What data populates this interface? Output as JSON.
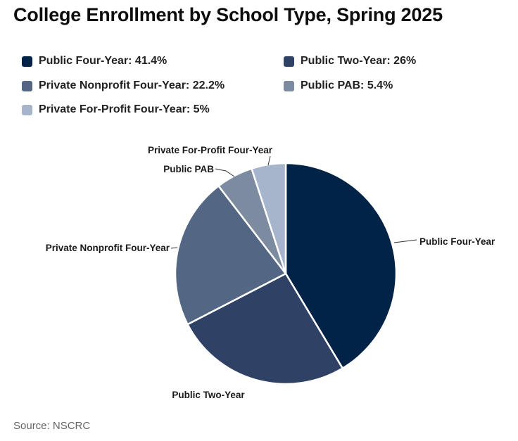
{
  "chart_data": {
    "type": "pie",
    "title": "College Enrollment by School Type, Spring 2025",
    "source": "Source: NSCRC",
    "slices": [
      {
        "label": "Public Four-Year",
        "value": 41.4,
        "legend": "Public Four-Year: 41.4%",
        "color": "#012348"
      },
      {
        "label": "Public Two-Year",
        "value": 26,
        "legend": "Public Two-Year: 26%",
        "color": "#2f4266"
      },
      {
        "label": "Private Nonprofit Four-Year",
        "value": 22.2,
        "legend": "Private Nonprofit Four-Year: 22.2%",
        "color": "#536784"
      },
      {
        "label": "Public PAB",
        "value": 5.4,
        "legend": "Public PAB: 5.4%",
        "color": "#7d8ba1"
      },
      {
        "label": "Private For-Profit Four-Year",
        "value": 5,
        "legend": "Private For-Profit Four-Year: 5%",
        "color": "#a6b5cc"
      }
    ]
  }
}
